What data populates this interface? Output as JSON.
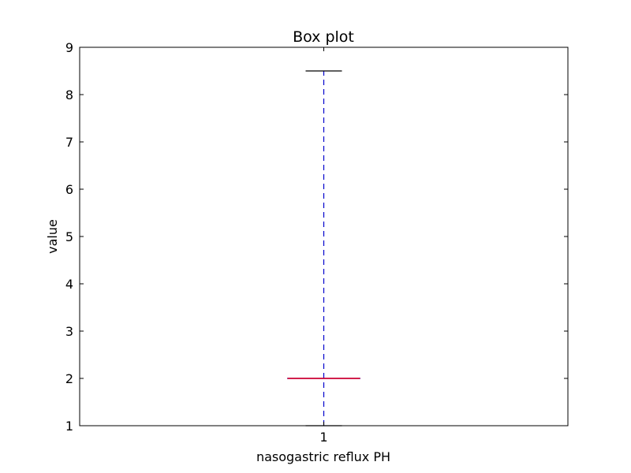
{
  "chart_data": {
    "type": "box",
    "title": "Box plot",
    "xlabel": "nasogastric reflux PH",
    "ylabel": "value",
    "ylim": [
      1,
      9
    ],
    "y_ticks": [
      "1",
      "2",
      "3",
      "4",
      "5",
      "6",
      "7",
      "8",
      "9"
    ],
    "categories": [
      "1"
    ],
    "boxes": [
      {
        "category": "1",
        "min": 1,
        "q1": 2,
        "median": 2,
        "q3": 2,
        "max": 8.5
      }
    ],
    "grid": false,
    "colors": {
      "median": "#cc0033",
      "whisker": "#0000cc",
      "cap": "#000000",
      "box": "#0000cc"
    }
  }
}
